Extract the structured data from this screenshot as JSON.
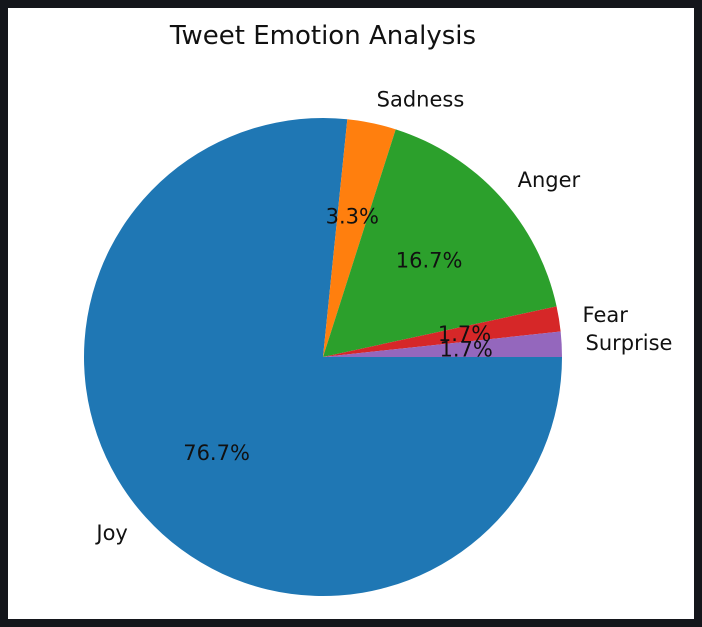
{
  "chart_data": {
    "type": "pie",
    "title": "Tweet Emotion Analysis",
    "start_angle_deg": 0,
    "direction": "clockwise",
    "slices": [
      {
        "label": "Joy",
        "value": 76.7,
        "pct_label": "76.7%",
        "color": "#1f77b4"
      },
      {
        "label": "Sadness",
        "value": 3.3,
        "pct_label": "3.3%",
        "color": "#ff7f0e"
      },
      {
        "label": "Anger",
        "value": 16.7,
        "pct_label": "16.7%",
        "color": "#2ca02c"
      },
      {
        "label": "Fear",
        "value": 1.7,
        "pct_label": "1.7%",
        "color": "#d62728"
      },
      {
        "label": "Surprise",
        "value": 1.7,
        "pct_label": "1.7%",
        "color": "#9467bd"
      }
    ]
  }
}
